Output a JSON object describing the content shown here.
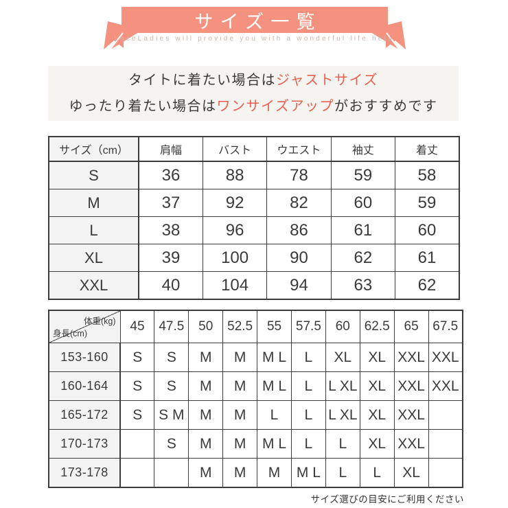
{
  "banner": {
    "title": "サイズ一覧",
    "subtitle": "LaceLadies will provide you with a wonderful life help"
  },
  "intro": {
    "line1_prefix": "タイトに着たい場合は",
    "line1_accent": "ジャストサイズ",
    "line2_prefix": "ゆったり着たい場合は",
    "line2_accent": "ワンサイズアップ",
    "line2_suffix": "がおすすめです"
  },
  "size_table": {
    "headers": [
      "サイズ（cm）",
      "肩幅",
      "バスト",
      "ウエスト",
      "袖丈",
      "着丈"
    ],
    "rows": [
      [
        "S",
        "36",
        "88",
        "78",
        "59",
        "58"
      ],
      [
        "M",
        "37",
        "92",
        "82",
        "60",
        "59"
      ],
      [
        "L",
        "38",
        "96",
        "86",
        "61",
        "60"
      ],
      [
        "XL",
        "39",
        "100",
        "90",
        "62",
        "61"
      ],
      [
        "XXL",
        "40",
        "104",
        "94",
        "63",
        "62"
      ]
    ]
  },
  "fit_table": {
    "corner": {
      "top_right": "体重(kg)",
      "bottom_left": "身長(cm)"
    },
    "weights": [
      "45",
      "47.5",
      "50",
      "52.5",
      "55",
      "57.5",
      "60",
      "62.5",
      "65",
      "67.5"
    ],
    "rows": [
      {
        "height": "153-160",
        "sizes": [
          "S",
          "S",
          "M",
          "M",
          "M L",
          "L",
          "XL",
          "XL",
          "XXL",
          "XXL"
        ]
      },
      {
        "height": "160-164",
        "sizes": [
          "S",
          "S",
          "M",
          "M",
          "M L",
          "L",
          "L XL",
          "XL",
          "XXL",
          "XXL"
        ]
      },
      {
        "height": "165-172",
        "sizes": [
          "S",
          "S M",
          "M",
          "M",
          "L",
          "L",
          "L XL",
          "XL",
          "XXL",
          ""
        ]
      },
      {
        "height": "170-173",
        "sizes": [
          "",
          "S",
          "M",
          "M",
          "M L",
          "L",
          "L",
          "XL",
          "XXL",
          ""
        ]
      },
      {
        "height": "173-178",
        "sizes": [
          "",
          "",
          "M",
          "M",
          "M",
          "M L",
          "L",
          "L",
          "XL",
          ""
        ]
      }
    ]
  },
  "footer_note": "サイズ選びの目安にご利用ください",
  "colors": {
    "ribbon": "#f4917f",
    "accent": "#e8604d",
    "subtitle": "#c6b8af",
    "panel_bg": "#f6f4f1",
    "table_border": "#3c3c3c",
    "label_bg": "#f3f3f3",
    "text": "#3a3a3a"
  }
}
